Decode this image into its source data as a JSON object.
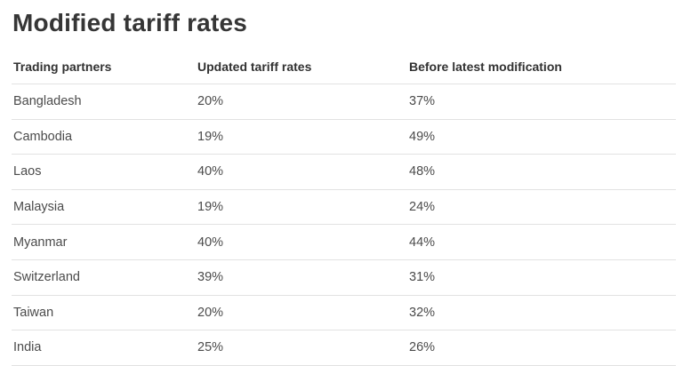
{
  "page": {
    "title": "Modified tariff rates"
  },
  "table": {
    "columns": [
      {
        "label": "Trading partners"
      },
      {
        "label": "Updated tariff rates"
      },
      {
        "label": "Before latest modification"
      }
    ],
    "rows": [
      {
        "partner": "Bangladesh",
        "updated": "20%",
        "before": "37%"
      },
      {
        "partner": "Cambodia",
        "updated": "19%",
        "before": "49%"
      },
      {
        "partner": "Laos",
        "updated": "40%",
        "before": "48%"
      },
      {
        "partner": "Malaysia",
        "updated": "19%",
        "before": "24%"
      },
      {
        "partner": "Myanmar",
        "updated": "40%",
        "before": "44%"
      },
      {
        "partner": "Switzerland",
        "updated": "39%",
        "before": "31%"
      },
      {
        "partner": "Taiwan",
        "updated": "20%",
        "before": "32%"
      },
      {
        "partner": "India",
        "updated": "25%",
        "before": "26%"
      }
    ]
  },
  "colors": {
    "title_text": "#363636",
    "header_text": "#323232",
    "body_text": "#4b4b4b",
    "divider": "#e2e2e2",
    "background": "#ffffff"
  },
  "chart_data": {
    "type": "table",
    "title": "Modified tariff rates",
    "columns": [
      "Trading partners",
      "Updated tariff rates",
      "Before latest modification"
    ],
    "rows": [
      [
        "Bangladesh",
        "20%",
        "37%"
      ],
      [
        "Cambodia",
        "19%",
        "49%"
      ],
      [
        "Laos",
        "40%",
        "48%"
      ],
      [
        "Malaysia",
        "19%",
        "24%"
      ],
      [
        "Myanmar",
        "40%",
        "44%"
      ],
      [
        "Switzerland",
        "39%",
        "31%"
      ],
      [
        "Taiwan",
        "20%",
        "32%"
      ],
      [
        "India",
        "25%",
        "26%"
      ]
    ],
    "units": "percent",
    "notes": "Updated tariff rates vs rates before latest modification, by trading partner"
  }
}
